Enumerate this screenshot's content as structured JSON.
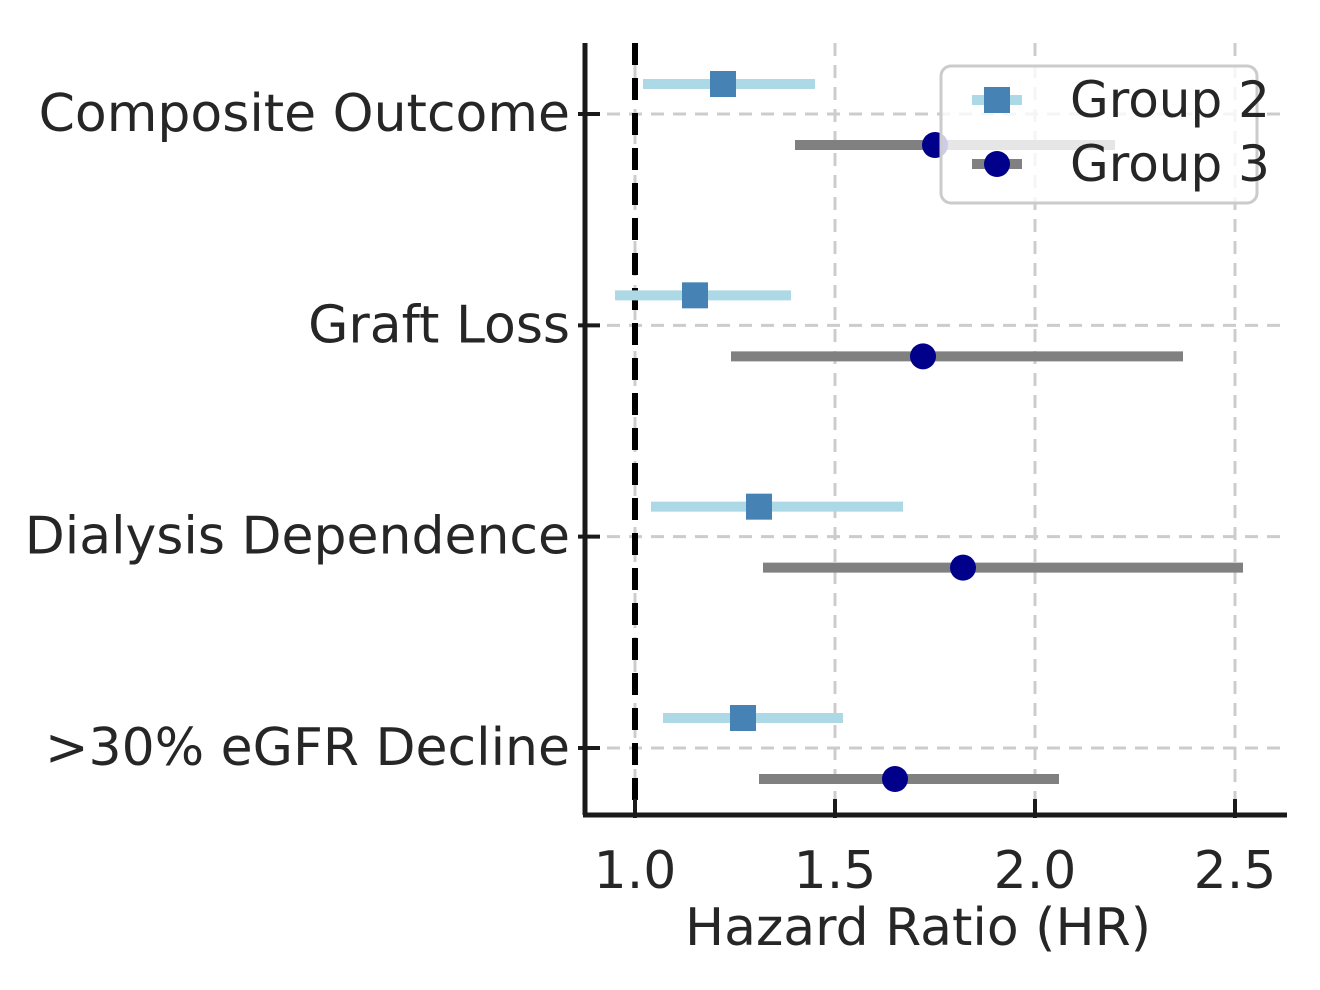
{
  "figure": {
    "background": "#ffffff",
    "text_color": "#262626"
  },
  "chart_data": {
    "type": "scatter",
    "subtype": "forest-plot-errorbar",
    "title": "",
    "xlabel": "Hazard Ratio (HR)",
    "ylabel": "",
    "categories": [
      "Composite Outcome",
      "Graft Loss",
      "Dialysis Dependence",
      ">30% eGFR Decline"
    ],
    "x_ticks": [
      "1.0",
      "1.5",
      "2.0",
      "2.5"
    ],
    "x_tick_values": [
      1.0,
      1.5,
      2.0,
      2.5
    ],
    "xlim": [
      0.875,
      2.63
    ],
    "reference_line_x": 1.0,
    "grid": true,
    "legend": {
      "position": "upper right",
      "entries": [
        "Group 2",
        "Group 3"
      ]
    },
    "series": [
      {
        "name": "Group 2",
        "marker": "square",
        "marker_color": "#4682B4",
        "error_color": "#ADD8E6",
        "points": [
          {
            "category": "Composite Outcome",
            "hr": 1.22,
            "ci_low": 1.02,
            "ci_high": 1.45
          },
          {
            "category": "Graft Loss",
            "hr": 1.15,
            "ci_low": 0.95,
            "ci_high": 1.39
          },
          {
            "category": "Dialysis Dependence",
            "hr": 1.31,
            "ci_low": 1.04,
            "ci_high": 1.67
          },
          {
            "category": ">30% eGFR Decline",
            "hr": 1.27,
            "ci_low": 1.07,
            "ci_high": 1.52
          }
        ]
      },
      {
        "name": "Group 3",
        "marker": "circle",
        "marker_color": "#00008B",
        "error_color": "#808080",
        "points": [
          {
            "category": "Composite Outcome",
            "hr": 1.75,
            "ci_low": 1.4,
            "ci_high": 2.2
          },
          {
            "category": "Graft Loss",
            "hr": 1.72,
            "ci_low": 1.24,
            "ci_high": 2.37
          },
          {
            "category": "Dialysis Dependence",
            "hr": 1.82,
            "ci_low": 1.32,
            "ci_high": 2.52
          },
          {
            "category": ">30% eGFR Decline",
            "hr": 1.65,
            "ci_low": 1.31,
            "ci_high": 2.06
          }
        ]
      }
    ],
    "style": {
      "reference_line_color": "#000000",
      "gridline_color": "#cccccc",
      "spine_color": "#1a1a1a",
      "tick_color": "#1a1a1a",
      "legend_border_color": "#cbcbcb",
      "legend_background": "rgba(255,255,255,0.8)"
    }
  }
}
